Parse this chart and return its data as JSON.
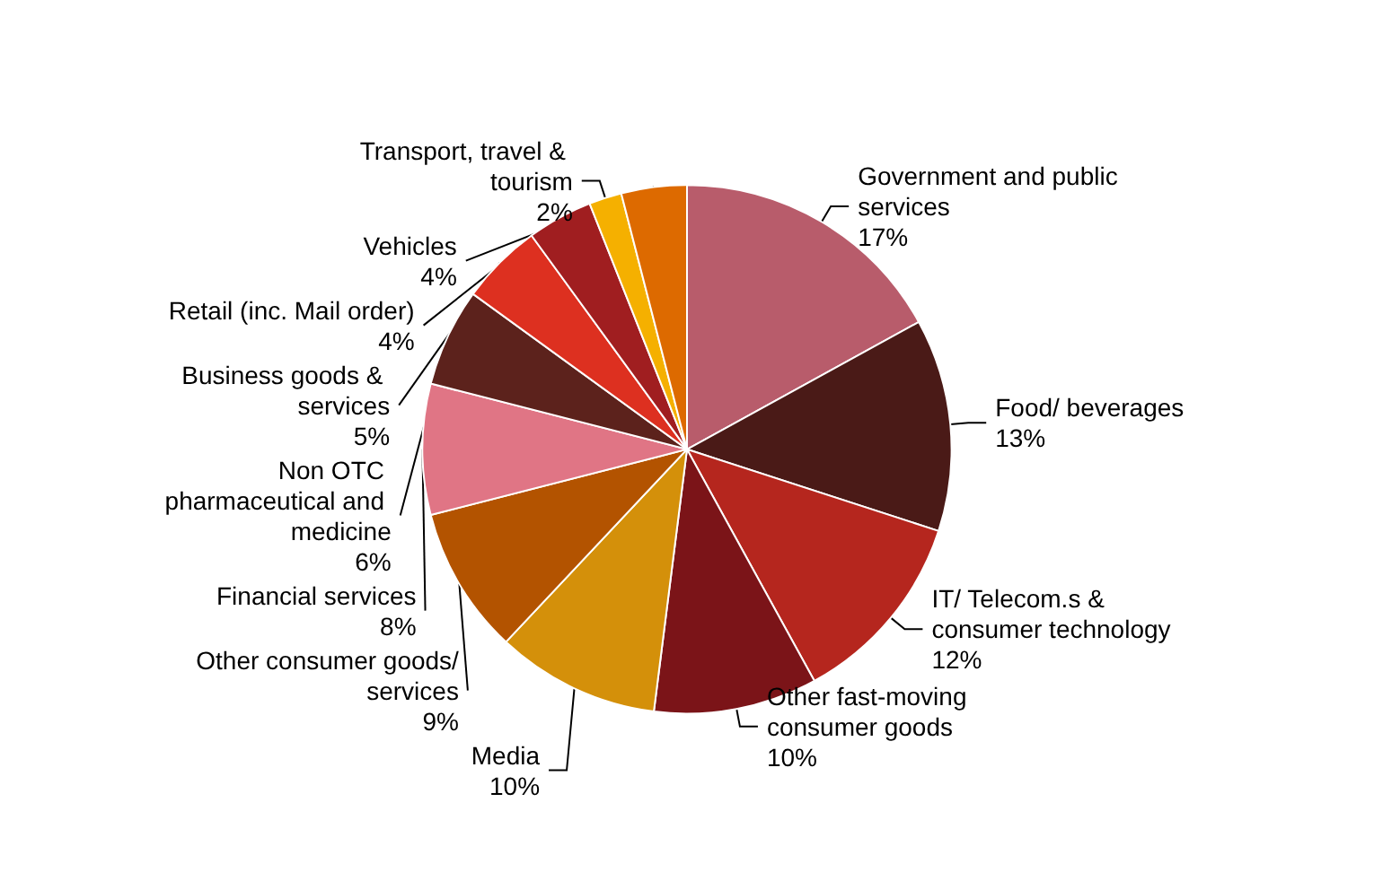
{
  "chart_data": {
    "type": "pie",
    "categories": [
      "Government and public services",
      "Food/ beverages",
      "IT/ Telecom.s & consumer technology",
      "Other fast-moving consumer goods",
      "Media",
      "Other consumer goods/ services",
      "Financial services",
      "Non OTC pharmaceutical and medicine",
      "Business goods & services",
      "Retail (inc. Mail order)",
      "Transport, travel & tourism",
      "Vehicles"
    ],
    "values": [
      17,
      13,
      12,
      10,
      10,
      9,
      8,
      6,
      5,
      4,
      2,
      4
    ],
    "value_labels": [
      "17%",
      "13%",
      "12%",
      "10%",
      "10%",
      "9%",
      "8%",
      "6%",
      "5%",
      "4%",
      "2%",
      "4%"
    ],
    "colors": [
      "#b85c6b",
      "#4a1a17",
      "#b5261e",
      "#7b1418",
      "#d4900a",
      "#b35300",
      "#e07585",
      "#5c221c",
      "#dd3020",
      "#a01e20",
      "#f5b000",
      "#dd6a00"
    ],
    "legend": false
  }
}
